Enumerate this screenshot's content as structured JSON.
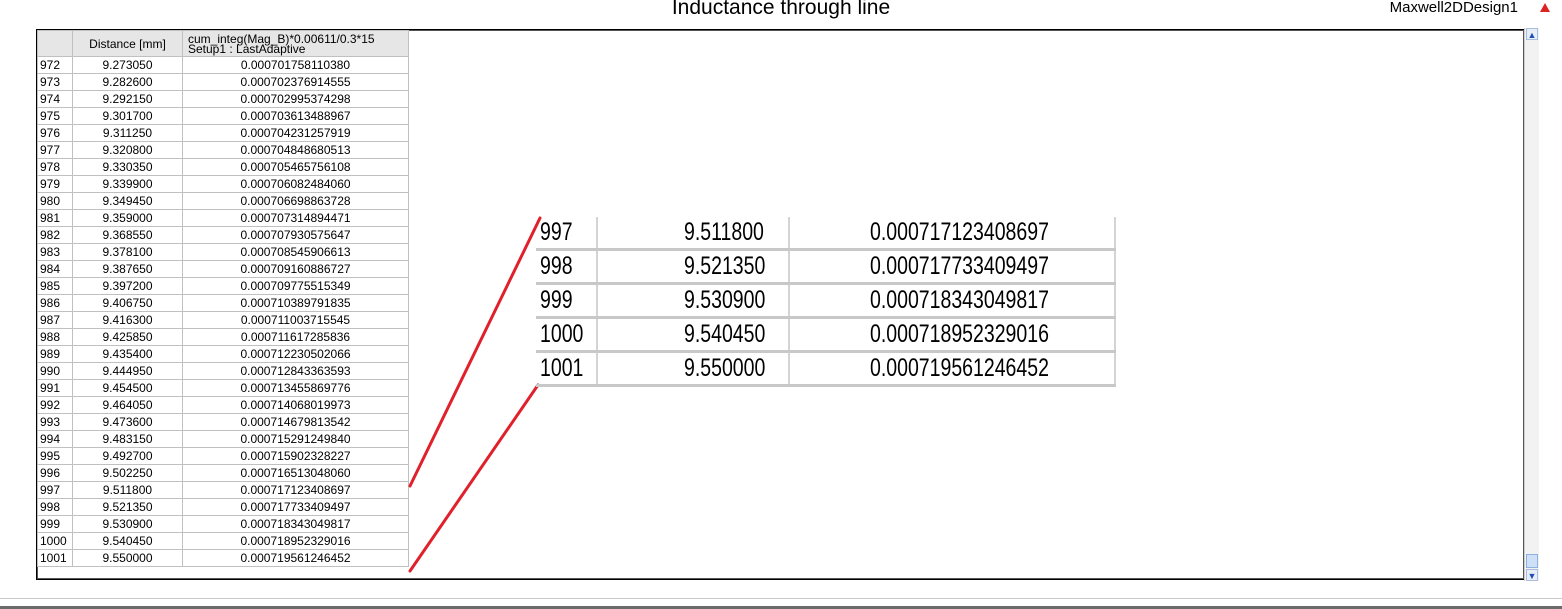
{
  "window": {
    "title": "Inductance through line",
    "design_name": "Maxwell2DDesign1",
    "logo_icon": "ansys-logo-icon"
  },
  "table": {
    "columns": {
      "index": "",
      "distance": "Distance [mm]",
      "expr_line1": "cum_integ(Mag_B)*0.00611/0.3*15",
      "expr_line2": "Setup1 : LastAdaptive"
    },
    "rows": [
      {
        "index": "972",
        "distance": "9.273050",
        "value": "0.000701758110380"
      },
      {
        "index": "973",
        "distance": "9.282600",
        "value": "0.000702376914555"
      },
      {
        "index": "974",
        "distance": "9.292150",
        "value": "0.000702995374298"
      },
      {
        "index": "975",
        "distance": "9.301700",
        "value": "0.000703613488967"
      },
      {
        "index": "976",
        "distance": "9.311250",
        "value": "0.000704231257919"
      },
      {
        "index": "977",
        "distance": "9.320800",
        "value": "0.000704848680513"
      },
      {
        "index": "978",
        "distance": "9.330350",
        "value": "0.000705465756108"
      },
      {
        "index": "979",
        "distance": "9.339900",
        "value": "0.000706082484060"
      },
      {
        "index": "980",
        "distance": "9.349450",
        "value": "0.000706698863728"
      },
      {
        "index": "981",
        "distance": "9.359000",
        "value": "0.000707314894471"
      },
      {
        "index": "982",
        "distance": "9.368550",
        "value": "0.000707930575647"
      },
      {
        "index": "983",
        "distance": "9.378100",
        "value": "0.000708545906613"
      },
      {
        "index": "984",
        "distance": "9.387650",
        "value": "0.000709160886727"
      },
      {
        "index": "985",
        "distance": "9.397200",
        "value": "0.000709775515349"
      },
      {
        "index": "986",
        "distance": "9.406750",
        "value": "0.000710389791835"
      },
      {
        "index": "987",
        "distance": "9.416300",
        "value": "0.000711003715545"
      },
      {
        "index": "988",
        "distance": "9.425850",
        "value": "0.000711617285836"
      },
      {
        "index": "989",
        "distance": "9.435400",
        "value": "0.000712230502066"
      },
      {
        "index": "990",
        "distance": "9.444950",
        "value": "0.000712843363593"
      },
      {
        "index": "991",
        "distance": "9.454500",
        "value": "0.000713455869776"
      },
      {
        "index": "992",
        "distance": "9.464050",
        "value": "0.000714068019973"
      },
      {
        "index": "993",
        "distance": "9.473600",
        "value": "0.000714679813542"
      },
      {
        "index": "994",
        "distance": "9.483150",
        "value": "0.000715291249840"
      },
      {
        "index": "995",
        "distance": "9.492700",
        "value": "0.000715902328227"
      },
      {
        "index": "996",
        "distance": "9.502250",
        "value": "0.000716513048060"
      },
      {
        "index": "997",
        "distance": "9.511800",
        "value": "0.000717123408697"
      },
      {
        "index": "998",
        "distance": "9.521350",
        "value": "0.000717733409497"
      },
      {
        "index": "999",
        "distance": "9.530900",
        "value": "0.000718343049817"
      },
      {
        "index": "1000",
        "distance": "9.540450",
        "value": "0.000718952329016"
      },
      {
        "index": "1001",
        "distance": "9.550000",
        "value": "0.000719561246452"
      }
    ]
  },
  "zoom": {
    "rows": [
      {
        "index": "997",
        "distance": "9.511800",
        "value": "0.000717123408697"
      },
      {
        "index": "998",
        "distance": "9.521350",
        "value": "0.000717733409497"
      },
      {
        "index": "999",
        "distance": "9.530900",
        "value": "0.000718343049817"
      },
      {
        "index": "1000",
        "distance": "9.540450",
        "value": "0.000718952329016"
      },
      {
        "index": "1001",
        "distance": "9.550000",
        "value": "0.000719561246452"
      }
    ],
    "line_color": "#e0202a"
  },
  "scrollbar": {
    "up_icon": "scroll-up-arrow-icon",
    "down_icon": "scroll-down-arrow-icon"
  }
}
